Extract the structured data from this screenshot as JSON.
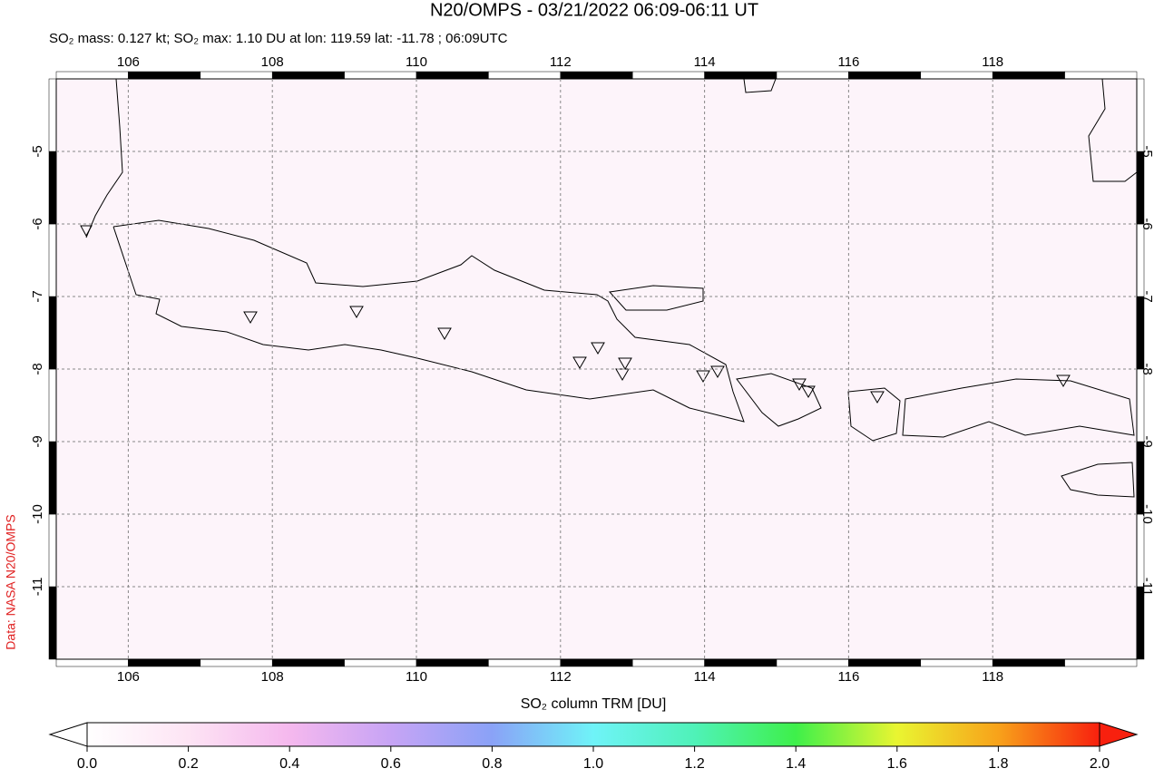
{
  "title": "N20/OMPS - 03/21/2022 06:09-06:11 UT",
  "subtitle": "SO₂ mass: 0.127 kt; SO₂ max: 1.10 DU at lon: 119.59 lat: -11.78 ; 06:09UTC",
  "credit": "Data: NASA N20/OMPS",
  "map": {
    "xlim": [
      105,
      120
    ],
    "ylim": [
      -12,
      -4
    ],
    "xticks": [
      106,
      108,
      110,
      112,
      114,
      116,
      118
    ],
    "yticks": [
      -5,
      -6,
      -7,
      -8,
      -9,
      -10,
      -11
    ]
  },
  "colorbar": {
    "label": "SO₂ column TRM [DU]",
    "lim": [
      0,
      2
    ],
    "ticks": [
      {
        "value": 0,
        "label": "0.0"
      },
      {
        "value": 0.2,
        "label": "0.2"
      },
      {
        "value": 0.4,
        "label": "0.4"
      },
      {
        "value": 0.6,
        "label": "0.6"
      },
      {
        "value": 0.8,
        "label": "0.8"
      },
      {
        "value": 1,
        "label": "1.0"
      },
      {
        "value": 1.2,
        "label": "1.2"
      },
      {
        "value": 1.4,
        "label": "1.4"
      },
      {
        "value": 1.6,
        "label": "1.6"
      },
      {
        "value": 1.8,
        "label": "1.8"
      },
      {
        "value": 2,
        "label": "2.0"
      }
    ]
  }
}
